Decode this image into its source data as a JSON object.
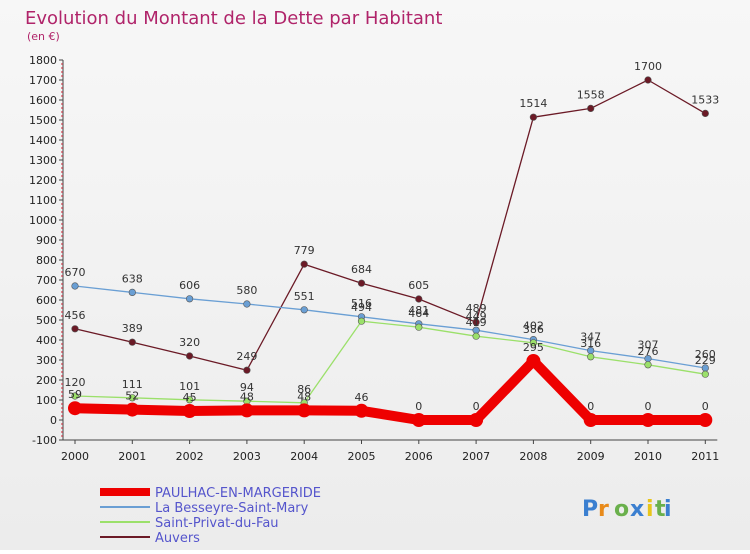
{
  "chart_data": {
    "type": "line",
    "title": "Evolution du Montant de la Dette par Habitant",
    "subtitle": "(en €)",
    "x": [
      "2000",
      "2001",
      "2002",
      "2003",
      "2004",
      "2005",
      "2006",
      "2007",
      "2008",
      "2009",
      "2010",
      "2011"
    ],
    "ylim": [
      -100,
      1800
    ],
    "yticks": [
      -100,
      0,
      100,
      200,
      300,
      400,
      500,
      600,
      700,
      800,
      900,
      1000,
      1100,
      1200,
      1300,
      1400,
      1500,
      1600,
      1700,
      1800
    ],
    "grid": false,
    "legend_position": "bottom-left",
    "series": [
      {
        "name": "Auvers",
        "color": "#6b1a26",
        "values": [
          456,
          389,
          320,
          249,
          779,
          684,
          605,
          489,
          1514,
          1558,
          1700,
          1533
        ],
        "labels": [
          "456",
          "389",
          "320",
          "249",
          "779",
          "684",
          "605",
          "489",
          "1514",
          "1558",
          "1700",
          "1533"
        ]
      },
      {
        "name": "La Besseyre-Saint-Mary",
        "color": "#6a9fd4",
        "values": [
          670,
          638,
          606,
          580,
          551,
          516,
          481,
          449,
          402,
          347,
          307,
          260
        ],
        "labels": [
          "670",
          "638",
          "606",
          "580",
          "551",
          "516",
          "481",
          "449",
          "402",
          "347",
          "307",
          "260"
        ]
      },
      {
        "name": "Saint-Privat-du-Fau",
        "color": "#9be06a",
        "values": [
          120,
          111,
          101,
          94,
          86,
          494,
          464,
          419,
          386,
          316,
          276,
          229
        ],
        "labels": [
          "120",
          "111",
          "101",
          "94",
          "86",
          "494",
          "464",
          "419",
          "386",
          "316",
          "276",
          "229"
        ]
      },
      {
        "name": "PAULHAC-EN-MARGERIDE",
        "color": "#ee0000",
        "values": [
          59,
          52,
          45,
          48,
          48,
          46,
          0,
          0,
          295,
          0,
          0,
          0
        ],
        "labels": [
          "59",
          "52",
          "45",
          "48",
          "48",
          "46",
          "0",
          "0",
          "295",
          "0",
          "0",
          "0"
        ]
      }
    ],
    "legend": [
      "PAULHAC-EN-MARGERIDE",
      "La Besseyre-Saint-Mary",
      "Saint-Privat-du-Fau",
      "Auvers"
    ]
  },
  "logo": {
    "text": "Proxiti"
  }
}
